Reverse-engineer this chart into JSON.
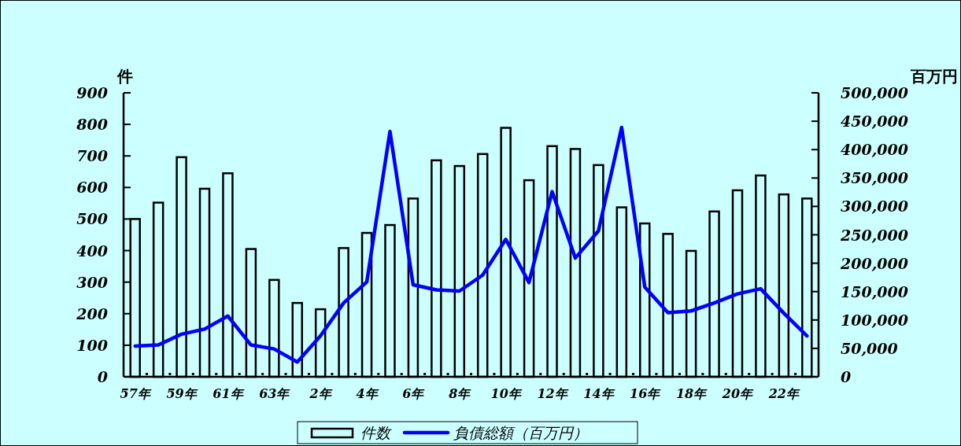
{
  "chart_data": {
    "type": "bar",
    "ylabel": "件",
    "y2label": "百万円",
    "categories": [
      "57年",
      null,
      "59年",
      null,
      "61年",
      null,
      "63年",
      null,
      "2年",
      null,
      "4年",
      null,
      "6年",
      null,
      "8年",
      null,
      "10年",
      null,
      "12年",
      null,
      "14年",
      null,
      "16年",
      null,
      "18年",
      null,
      "20年",
      null,
      "22年",
      null
    ],
    "series": [
      {
        "name": "件数",
        "color": "#ccffff",
        "values": [
          500,
          552,
          696,
          596,
          645,
          405,
          307,
          234,
          214,
          408,
          456,
          481,
          565,
          686,
          668,
          706,
          789,
          623,
          731,
          722,
          671,
          537,
          486,
          453,
          399,
          524,
          591,
          638,
          578,
          565
        ]
      },
      {
        "name": "負債総額（百万円）",
        "type": "line",
        "axis": "y2",
        "color": "#0000ff",
        "values": [
          54000,
          56000,
          75000,
          84000,
          107000,
          56000,
          49000,
          26000,
          72000,
          130000,
          167000,
          432000,
          162000,
          153000,
          151000,
          179000,
          242000,
          166000,
          326000,
          209000,
          257000,
          439000,
          158000,
          113000,
          116000,
          130000,
          146000,
          155000,
          112000,
          72000
        ]
      }
    ],
    "ylim": [
      0,
      900
    ],
    "yticks": [
      0,
      100,
      200,
      300,
      400,
      500,
      600,
      700,
      800,
      900
    ],
    "y2lim": [
      0,
      500000
    ],
    "y2ticks": [
      0,
      {
        "value": 50000,
        "label": "50,000"
      },
      {
        "value": 100000,
        "label": "100,000"
      },
      {
        "value": 150000,
        "label": "150,000"
      },
      {
        "value": 200000,
        "label": "200,000"
      },
      {
        "value": 250000,
        "label": "250,000"
      },
      {
        "value": 300000,
        "label": "300,000"
      },
      {
        "value": 350000,
        "label": "350,000"
      },
      {
        "value": 400000,
        "label": "400,000"
      },
      {
        "value": 450000,
        "label": "450,000"
      },
      {
        "value": 500000,
        "label": "500,000"
      }
    ],
    "legend": "bottom"
  }
}
